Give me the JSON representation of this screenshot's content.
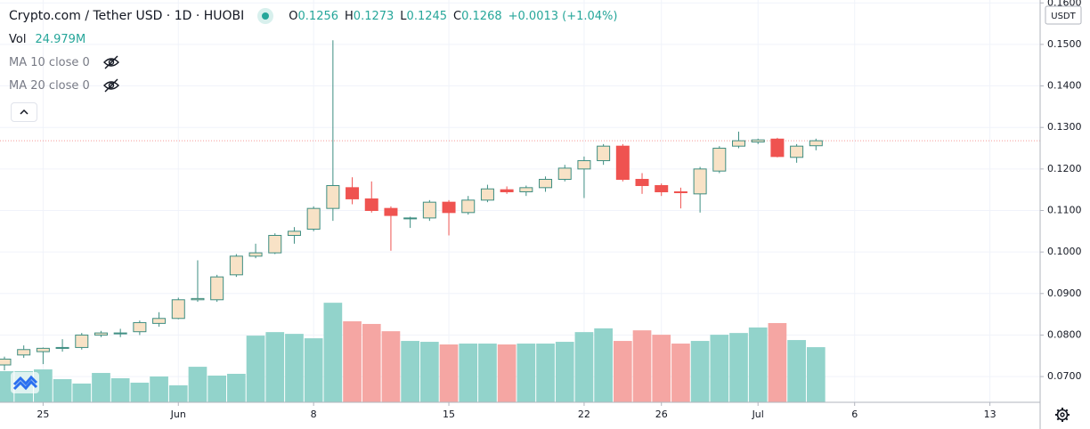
{
  "header": {
    "title": "Crypto.com / Tether USD · 1D · HUOBI",
    "ohlc": [
      {
        "label": "O",
        "value": "0.1256"
      },
      {
        "label": "H",
        "value": "0.1273"
      },
      {
        "label": "L",
        "value": "0.1245"
      },
      {
        "label": "C",
        "value": "0.1268"
      }
    ],
    "change": "+0.0013 (+1.04%)",
    "volume_label": "Vol",
    "volume_value": "24.979M",
    "indicators": [
      "MA 10 close 0",
      "MA 20 close 0"
    ],
    "currency": "USDT"
  },
  "chart_data": {
    "type": "candlestick",
    "open": [
      0.0728,
      0.0752,
      0.076,
      0.0768,
      0.077,
      0.08,
      0.0803,
      0.0808,
      0.0828,
      0.084,
      0.0885,
      0.0885,
      0.0945,
      0.099,
      0.0998,
      0.104,
      0.1055,
      0.1105,
      0.1155,
      0.1128,
      0.1105,
      0.108,
      0.1082,
      0.112,
      0.1095,
      0.1125,
      0.115,
      0.1145,
      0.1155,
      0.1175,
      0.12,
      0.122,
      0.1255,
      0.1175,
      0.116,
      0.1145,
      0.114,
      0.1195,
      0.1255,
      0.1265,
      0.1272,
      0.1228,
      0.1256
    ],
    "high": [
      0.0748,
      0.0775,
      0.077,
      0.079,
      0.0805,
      0.081,
      0.0815,
      0.0835,
      0.0855,
      0.089,
      0.098,
      0.0945,
      0.0995,
      0.102,
      0.1045,
      0.106,
      0.111,
      0.151,
      0.118,
      0.117,
      0.111,
      0.1085,
      0.1125,
      0.1125,
      0.1135,
      0.1162,
      0.1158,
      0.116,
      0.1182,
      0.121,
      0.123,
      0.126,
      0.126,
      0.119,
      0.1165,
      0.1155,
      0.1205,
      0.1255,
      0.129,
      0.1273,
      0.1275,
      0.126,
      0.1273
    ],
    "low": [
      0.0715,
      0.0745,
      0.073,
      0.076,
      0.0765,
      0.0795,
      0.0795,
      0.08,
      0.082,
      0.0838,
      0.088,
      0.088,
      0.094,
      0.0985,
      0.0995,
      0.102,
      0.105,
      0.1075,
      0.1115,
      0.1095,
      0.1003,
      0.1058,
      0.1075,
      0.104,
      0.109,
      0.112,
      0.114,
      0.1135,
      0.1145,
      0.117,
      0.113,
      0.121,
      0.117,
      0.114,
      0.1135,
      0.1105,
      0.1095,
      0.119,
      0.125,
      0.126,
      0.1228,
      0.1215,
      0.1245
    ],
    "close": [
      0.0742,
      0.0765,
      0.0768,
      0.077,
      0.08,
      0.0805,
      0.0805,
      0.083,
      0.084,
      0.0885,
      0.0888,
      0.094,
      0.099,
      0.0998,
      0.104,
      0.105,
      0.1105,
      0.116,
      0.1128,
      0.11,
      0.1088,
      0.1082,
      0.112,
      0.1095,
      0.1125,
      0.1152,
      0.1145,
      0.1155,
      0.1175,
      0.1202,
      0.122,
      0.1255,
      0.1175,
      0.116,
      0.1145,
      0.1143,
      0.12,
      0.125,
      0.1268,
      0.127,
      0.123,
      0.1255,
      0.1268
    ],
    "volume": [
      14.1,
      14.1,
      14.9,
      10.5,
      8.5,
      13.3,
      10.9,
      8.9,
      11.7,
      7.7,
      16.1,
      12.1,
      12.9,
      30.2,
      31.8,
      31.0,
      29.0,
      45.1,
      36.7,
      35.5,
      32.2,
      27.8,
      27.4,
      26.2,
      26.6,
      26.6,
      26.2,
      26.6,
      26.6,
      27.4,
      31.8,
      33.5,
      27.8,
      32.6,
      30.6,
      26.6,
      27.8,
      30.6,
      31.4,
      33.9,
      35.9,
      28.2,
      24.979
    ],
    "xlim": [
      -0.23,
      53.6
    ],
    "xticks": [
      {
        "value": 2,
        "label": "25"
      },
      {
        "value": 9,
        "label": "Jun"
      },
      {
        "value": 16,
        "label": "8"
      },
      {
        "value": 23,
        "label": "15"
      },
      {
        "value": 30,
        "label": "22"
      },
      {
        "value": 34,
        "label": "26"
      },
      {
        "value": 39,
        "label": "Jul"
      },
      {
        "value": 44,
        "label": "6"
      },
      {
        "value": 51,
        "label": "13"
      }
    ],
    "ylim": [
      0.0638,
      0.1607
    ],
    "yticks": [
      {
        "value": 0.07,
        "label": "0.0700"
      },
      {
        "value": 0.08,
        "label": "0.0800"
      },
      {
        "value": 0.09,
        "label": "0.0900"
      },
      {
        "value": 0.1,
        "label": "0.1000"
      },
      {
        "value": 0.11,
        "label": "0.1100"
      },
      {
        "value": 0.12,
        "label": "0.1200"
      },
      {
        "value": 0.13,
        "label": "0.1300"
      },
      {
        "value": 0.14,
        "label": "0.1400"
      },
      {
        "value": 0.15,
        "label": "0.1500"
      },
      {
        "value": 0.16,
        "label": "0.1600"
      }
    ],
    "volume_lim": [
      0,
      100
    ],
    "grid": true,
    "up_color": "#f8e2c6",
    "up_border": "#3e8e82",
    "down_color": "#ef5350",
    "volume_up_color": "#92d3cb",
    "volume_down_color": "#f5a6a3",
    "last_price_color": "#ef5350"
  }
}
